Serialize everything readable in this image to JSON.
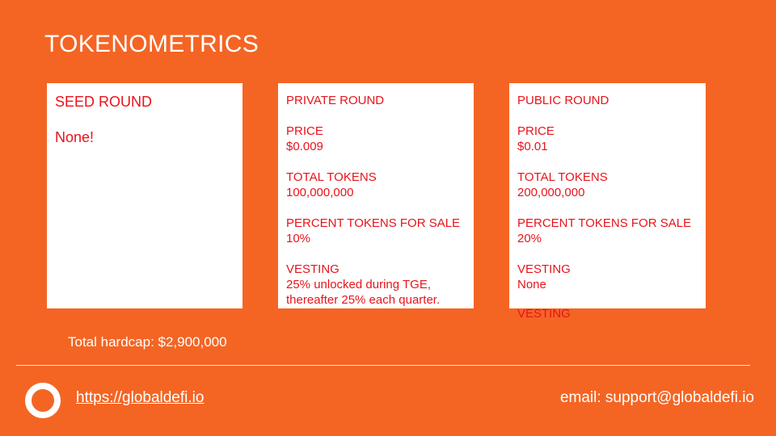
{
  "title": "TOKENOMETRICS",
  "seed_round": {
    "heading": "SEED ROUND",
    "text": "None!"
  },
  "private_round": {
    "heading": "PRIVATE ROUND",
    "price_label": "PRICE",
    "price_value": "$0.009",
    "total_tokens_label": "TOTAL TOKENS",
    "total_tokens_value": "100,000,000",
    "percent_label": "PERCENT TOKENS FOR SALE",
    "percent_value": "10%",
    "vesting_label": "VESTING",
    "vesting_value": "25% unlocked during TGE, thereafter 25% each quarter."
  },
  "public_round": {
    "heading": "PUBLIC ROUND",
    "price_label": "PRICE",
    "price_value": "$0.01",
    "total_tokens_label": "TOTAL TOKENS",
    "total_tokens_value": "200,000,000",
    "percent_label": "PERCENT TOKENS FOR SALE",
    "percent_value": "20%",
    "vesting_label": "VESTING",
    "vesting_value": "None",
    "overflow_label": "VESTING"
  },
  "hardcap": "Total hardcap: $2,900,000",
  "footer": {
    "link": "https://globaldefi.io",
    "email": "email: support@globaldefi.io"
  },
  "colors": {
    "background": "#f46524",
    "card_text": "#e8131a",
    "card_background": "#ffffff"
  },
  "icons": {
    "logo": "ring-logo-icon"
  }
}
